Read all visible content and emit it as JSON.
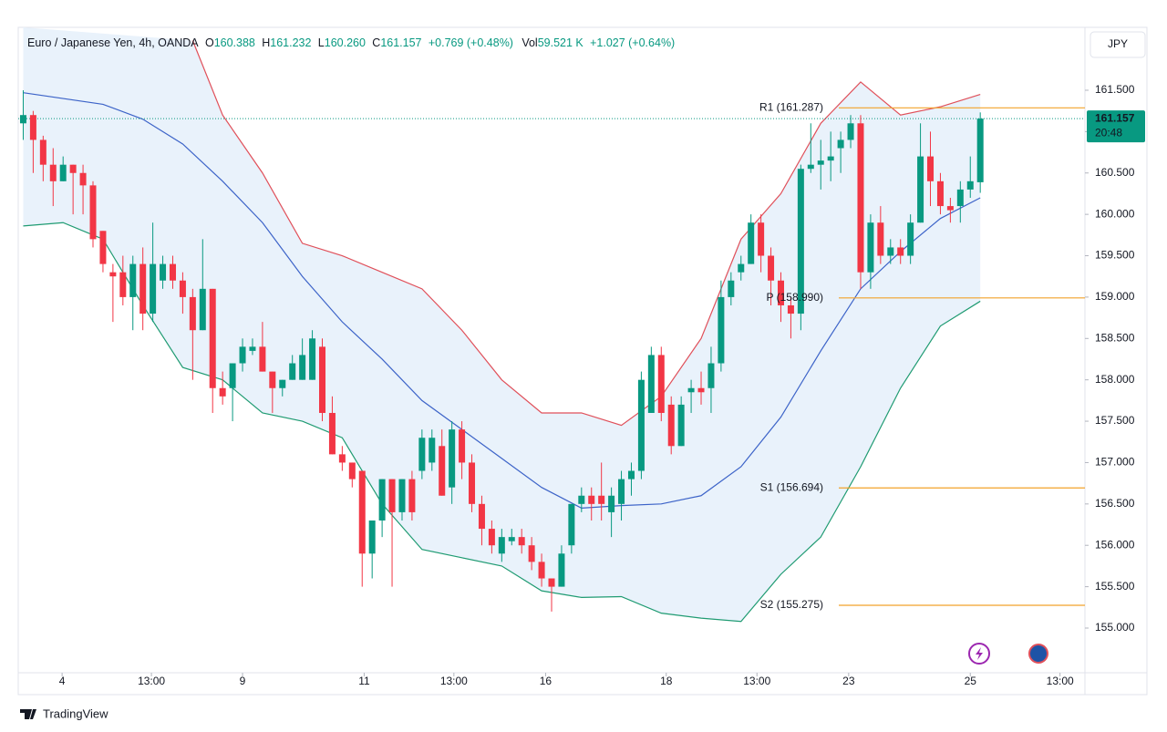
{
  "chart_data": {
    "type": "candlestick",
    "header": {
      "symbol": "Euro / Japanese Yen, 4h, OANDA",
      "ohlc": [
        {
          "label": "O",
          "value": "160.388"
        },
        {
          "label": "H",
          "value": "161.232"
        },
        {
          "label": "L",
          "value": "160.260"
        },
        {
          "label": "C",
          "value": "161.157"
        }
      ],
      "change": "+0.769 (+0.48%)",
      "volume": {
        "label": "Vol",
        "value": "59.521 K"
      },
      "volume_change": "+1.027 (+0.64%)"
    },
    "currency": "JPY",
    "brand": "TradingView",
    "up_color": "#089981",
    "down_color": "#f23645",
    "open": [
      161.1,
      161.2,
      160.9,
      160.6,
      160.4,
      160.6,
      160.5,
      160.35,
      159.8,
      159.3,
      159.3,
      159.0,
      159.4,
      158.8,
      159.2,
      159.4,
      159.2,
      159.0,
      158.6,
      159.1,
      157.9,
      157.9,
      158.2,
      158.35,
      158.4,
      158.1,
      157.9,
      158.0,
      158.0,
      158.0,
      158.4,
      157.6,
      157.1,
      157.0,
      156.9,
      155.9,
      156.3,
      156.8,
      156.4,
      156.8,
      156.9,
      157.0,
      157.2,
      156.7,
      157.4,
      157.0,
      156.5,
      156.2,
      155.9,
      156.05,
      156.1,
      156.0,
      155.8,
      155.6,
      155.5,
      156.0,
      156.5,
      156.6,
      156.6,
      156.4,
      156.5,
      156.8,
      156.9,
      157.6,
      158.3,
      157.7,
      157.2,
      157.85,
      157.9,
      157.9,
      158.2,
      159.0,
      159.3,
      159.4,
      159.9,
      159.5,
      159.2,
      158.9,
      158.8,
      160.55,
      160.6,
      160.65,
      160.8,
      160.9,
      161.1,
      159.3,
      159.9,
      159.5,
      159.6,
      159.5,
      159.9,
      160.7,
      160.4,
      160.1,
      160.1,
      160.3,
      160.388
    ],
    "high": [
      161.5,
      161.25,
      160.95,
      160.8,
      160.7,
      160.6,
      160.6,
      160.4,
      159.8,
      159.4,
      159.5,
      159.5,
      159.6,
      159.9,
      159.5,
      159.5,
      159.3,
      159.1,
      159.7,
      159.1,
      158.1,
      158.2,
      158.5,
      158.5,
      158.7,
      158.1,
      158.0,
      158.3,
      158.5,
      158.6,
      158.5,
      157.8,
      157.2,
      157.0,
      156.9,
      156.3,
      156.8,
      156.8,
      156.8,
      156.9,
      157.4,
      157.4,
      157.4,
      157.5,
      157.5,
      157.1,
      156.6,
      156.3,
      156.2,
      156.2,
      156.2,
      156.1,
      155.9,
      155.6,
      156.0,
      156.5,
      156.7,
      156.7,
      157.0,
      156.7,
      156.9,
      157.0,
      158.1,
      158.4,
      158.4,
      157.8,
      157.8,
      158.0,
      158.1,
      158.4,
      159.2,
      159.3,
      159.5,
      160.0,
      160.0,
      159.6,
      159.3,
      159.0,
      160.6,
      161.1,
      160.9,
      161.0,
      161.0,
      161.2,
      161.2,
      160.0,
      160.1,
      159.7,
      159.7,
      160.0,
      161.1,
      161.0,
      160.5,
      160.2,
      160.4,
      160.7,
      161.232
    ],
    "low": [
      160.9,
      160.5,
      160.4,
      160.1,
      160.4,
      160.0,
      160.0,
      159.6,
      159.3,
      158.7,
      158.9,
      158.6,
      158.6,
      158.7,
      159.1,
      159.1,
      158.8,
      158.0,
      158.6,
      157.6,
      157.7,
      157.5,
      158.1,
      158.3,
      158.1,
      157.6,
      157.8,
      158.0,
      158.0,
      158.0,
      157.5,
      157.1,
      156.9,
      156.7,
      155.5,
      155.6,
      156.1,
      155.5,
      156.3,
      156.3,
      156.8,
      156.9,
      156.6,
      156.5,
      156.8,
      156.4,
      156.0,
      155.9,
      155.8,
      156.0,
      155.9,
      155.7,
      155.5,
      155.2,
      155.5,
      155.9,
      156.4,
      156.3,
      156.3,
      156.1,
      156.3,
      156.6,
      156.8,
      157.6,
      157.5,
      157.1,
      157.2,
      157.6,
      157.7,
      157.6,
      158.1,
      158.9,
      159.2,
      159.4,
      159.3,
      158.9,
      158.7,
      158.5,
      158.6,
      160.5,
      160.3,
      160.4,
      160.5,
      160.8,
      159.1,
      159.1,
      159.4,
      159.4,
      159.4,
      159.4,
      159.9,
      160.1,
      160.0,
      159.9,
      159.9,
      160.2,
      160.26
    ],
    "close": [
      161.2,
      160.9,
      160.6,
      160.4,
      160.6,
      160.5,
      160.35,
      159.7,
      159.4,
      159.25,
      159.0,
      159.4,
      158.8,
      159.4,
      159.4,
      159.2,
      159.0,
      158.6,
      159.1,
      157.9,
      157.8,
      158.2,
      158.4,
      158.4,
      158.1,
      157.9,
      158.0,
      158.2,
      158.3,
      158.5,
      157.6,
      157.1,
      157.0,
      156.8,
      155.9,
      156.3,
      156.8,
      156.4,
      156.8,
      156.4,
      157.3,
      157.3,
      156.6,
      157.4,
      157.0,
      156.5,
      156.2,
      156.0,
      156.1,
      156.1,
      156.0,
      155.8,
      155.6,
      155.5,
      155.9,
      156.5,
      156.6,
      156.5,
      156.5,
      156.6,
      156.8,
      156.9,
      158.0,
      158.3,
      157.6,
      157.2,
      157.7,
      157.9,
      157.85,
      158.2,
      159.0,
      159.2,
      159.4,
      159.9,
      159.5,
      159.2,
      158.9,
      158.8,
      160.55,
      160.6,
      160.65,
      160.7,
      160.9,
      161.1,
      159.3,
      159.9,
      159.5,
      159.6,
      159.5,
      159.9,
      160.7,
      160.4,
      160.1,
      160.05,
      160.3,
      160.4,
      161.157
    ],
    "bands": [
      {
        "color": "#e0505a",
        "x": [
          17,
          20,
          24,
          28,
          32,
          36,
          40,
          44,
          48,
          52,
          56,
          60,
          64,
          68,
          72,
          76,
          80,
          84,
          88,
          92,
          96
        ],
        "values": [
          162.1,
          161.2,
          160.5,
          159.65,
          159.5,
          159.3,
          159.1,
          158.6,
          158.0,
          157.6,
          157.6,
          157.45,
          157.8,
          158.5,
          159.7,
          160.25,
          161.1,
          161.6,
          161.2,
          161.3,
          161.45
        ]
      },
      {
        "color": "#3c63c8",
        "x": [
          0,
          4,
          8,
          12,
          16,
          20,
          24,
          28,
          32,
          36,
          40,
          44,
          48,
          52,
          56,
          60,
          64,
          68,
          72,
          76,
          80,
          84,
          88,
          92,
          96
        ],
        "values": [
          161.47,
          161.4,
          161.33,
          161.15,
          160.85,
          160.4,
          159.9,
          159.25,
          158.7,
          158.25,
          157.75,
          157.4,
          157.05,
          156.7,
          156.45,
          156.48,
          156.5,
          156.6,
          156.95,
          157.55,
          158.35,
          159.1,
          159.55,
          159.95,
          160.2
        ]
      },
      {
        "color": "#1f9b72",
        "x": [
          0,
          4,
          8,
          12,
          16,
          20,
          24,
          28,
          32,
          36,
          40,
          44,
          48,
          52,
          56,
          60,
          64,
          68,
          72,
          76,
          80,
          84,
          88,
          92,
          96
        ],
        "values": [
          159.86,
          159.9,
          159.7,
          158.9,
          158.15,
          158.0,
          157.6,
          157.5,
          157.3,
          156.5,
          155.95,
          155.85,
          155.75,
          155.45,
          155.37,
          155.38,
          155.18,
          155.12,
          155.08,
          155.65,
          156.1,
          156.95,
          157.9,
          158.65,
          158.95
        ]
      }
    ],
    "band_fill": "#e9f2fb",
    "pivots": [
      {
        "label": "R1 (161.287)",
        "value": 161.287
      },
      {
        "label": "P (158.990)",
        "value": 158.99
      },
      {
        "label": "S1 (156.694)",
        "value": 156.694
      },
      {
        "label": "S2 (155.275)",
        "value": 155.275
      }
    ],
    "pivot_color": "#f2a22a",
    "last_price": {
      "value": 161.157,
      "label": "161.157"
    },
    "countdown": "20:48",
    "xlim": [
      -0.5,
      106.5
    ],
    "xticks": [
      {
        "value": 3.9,
        "label": "4"
      },
      {
        "value": 12.86,
        "label": "13:00"
      },
      {
        "value": 22.0,
        "label": "9"
      },
      {
        "value": 34.2,
        "label": "11"
      },
      {
        "value": 43.2,
        "label": "13:00"
      },
      {
        "value": 52.4,
        "label": "16"
      },
      {
        "value": 64.5,
        "label": "18"
      },
      {
        "value": 73.6,
        "label": "13:00"
      },
      {
        "value": 82.8,
        "label": "23"
      },
      {
        "value": 95.0,
        "label": "25"
      },
      {
        "value": 104.0,
        "label": "13:00"
      }
    ],
    "ylim": [
      154.46,
      162.26
    ],
    "yticks": [
      {
        "value": 155,
        "label": "155.000"
      },
      {
        "value": 155.5,
        "label": "155.500"
      },
      {
        "value": 156,
        "label": "156.000"
      },
      {
        "value": 156.5,
        "label": "156.500"
      },
      {
        "value": 157,
        "label": "157.000"
      },
      {
        "value": 157.5,
        "label": "157.500"
      },
      {
        "value": 158,
        "label": "158.000"
      },
      {
        "value": 158.5,
        "label": "158.500"
      },
      {
        "value": 159,
        "label": "159.000"
      },
      {
        "value": 159.5,
        "label": "159.500"
      },
      {
        "value": 160,
        "label": "160.000"
      },
      {
        "value": 160.5,
        "label": "160.500"
      },
      {
        "value": 161,
        "label": "161.000"
      },
      {
        "value": 161.5,
        "label": "161.500"
      }
    ]
  }
}
